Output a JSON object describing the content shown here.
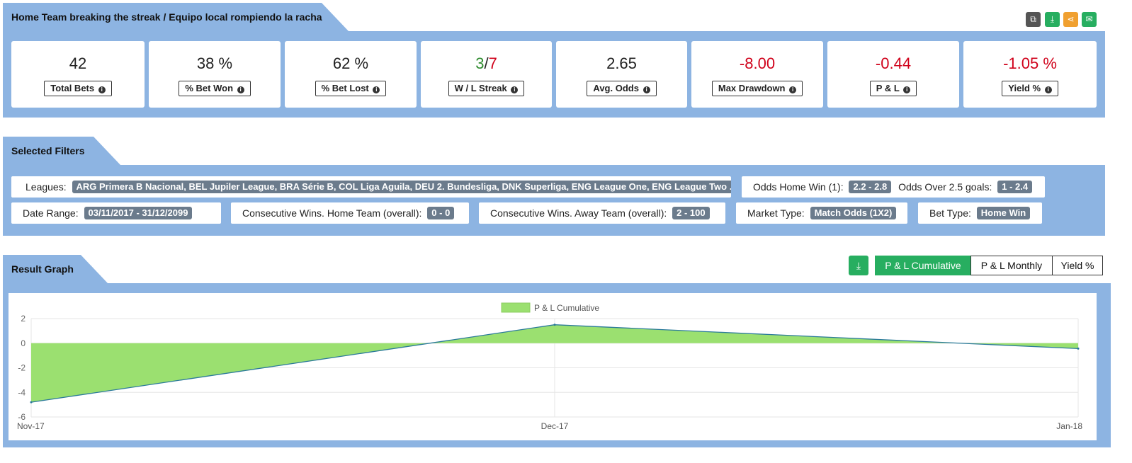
{
  "header": {
    "title": "Home Team breaking the streak / Equipo local rompiendo la racha",
    "icons": [
      "copy-icon",
      "download-icon",
      "share-icon",
      "mail-icon"
    ],
    "icon_colors": [
      "#555555",
      "#27ae60",
      "#f0a030",
      "#27ae60"
    ]
  },
  "stats": [
    {
      "value": "42",
      "label": "Total Bets"
    },
    {
      "value": "38 %",
      "label": "% Bet Won"
    },
    {
      "value": "62 %",
      "label": "% Bet Lost"
    },
    {
      "value_win": "3",
      "sep": "/",
      "value_loss": "7",
      "label": "W / L Streak"
    },
    {
      "value": "2.65",
      "label": "Avg. Odds"
    },
    {
      "value": "-8.00",
      "label": "Max Drawdown"
    },
    {
      "value": "-0.44",
      "label": "P & L"
    },
    {
      "value": "-1.05 %",
      "label": "Yield %"
    }
  ],
  "filters": {
    "title": "Selected Filters",
    "leagues_label": "Leagues:",
    "leagues_value": "ARG Primera B Nacional, BEL Jupiler League, BRA Série B, COL Liga Aguila, DEU 2. Bundesliga, DNK Superliga, ENG League One, ENG League Two ...",
    "odds_home_label": "Odds Home Win (1):",
    "odds_home_value": "2.2 - 2.8",
    "odds_over_label": "Odds Over 2.5 goals:",
    "odds_over_value": "1 - 2.4",
    "date_label": "Date Range:",
    "date_value": "03/11/2017 - 31/12/2099",
    "cons_home_label": "Consecutive Wins. Home Team (overall):",
    "cons_home_value": "0 - 0",
    "cons_away_label": "Consecutive Wins. Away Team (overall):",
    "cons_away_value": "2 - 100",
    "market_label": "Market Type:",
    "market_value": "Match Odds (1X2)",
    "bettype_label": "Bet Type:",
    "bettype_value": "Home Win"
  },
  "graph": {
    "title": "Result Graph",
    "buttons": [
      "P & L Cumulative",
      "P & L Monthly",
      "Yield %"
    ],
    "active": "P & L Cumulative"
  },
  "chart_data": {
    "type": "area",
    "title": "",
    "xlabel": "",
    "ylabel": "",
    "x": [
      "Nov-17",
      "Dec-17",
      "Jan-18"
    ],
    "series": [
      {
        "name": "P & L Cumulative",
        "values": [
          -4.8,
          1.5,
          -0.44
        ]
      }
    ],
    "ylim": [
      -6,
      2
    ],
    "yticks": [
      2,
      0,
      -2,
      -4,
      -6
    ],
    "grid": true,
    "legend": "top-center",
    "fill_color": "#9be070",
    "line_color": "#2b7a9a"
  }
}
